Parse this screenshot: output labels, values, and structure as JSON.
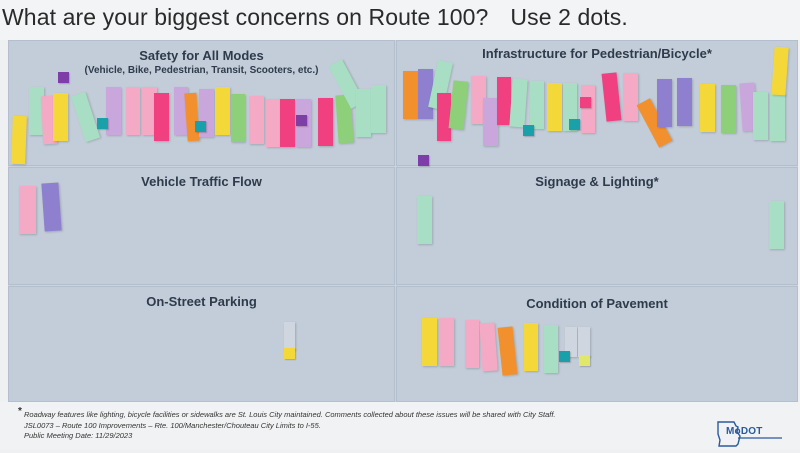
{
  "header": {
    "title": "What are your biggest concerns on Route 100?",
    "instruction": "Use 2 dots."
  },
  "panels": {
    "safety": {
      "title": "Safety for All Modes",
      "subtitle": "(Vehicle, Bike, Pedestrian, Transit, Scooters, etc.)"
    },
    "infrastructure": {
      "title": "Infrastructure for Pedestrian/Bicycle*"
    },
    "traffic": {
      "title": "Vehicle Traffic Flow"
    },
    "signage": {
      "title": "Signage & Lighting*"
    },
    "parking": {
      "title": "On-Street Parking"
    },
    "pavement": {
      "title": "Condition of Pavement"
    }
  },
  "footer": {
    "asterisk": "*",
    "note": "Roadway features like lighting, bicycle facilities or sidewalks are St. Louis City maintained. Comments collected about these issues will be shared with City Staff.",
    "project": "JSL0073 – Route 100 Improvements – Rte. 100/Manchester/Chouteau City Limits to I-55.",
    "meeting": "Public Meeting Date: 11/29/2023"
  },
  "logo": {
    "text": "MoDOT"
  },
  "colors": {
    "yellow": "#f4d83a",
    "pink": "#f4a9c4",
    "magenta": "#f0407f",
    "mint": "#a8dfc4",
    "green": "#8ed07a",
    "orange": "#f3902e",
    "lavender": "#c9a6dc",
    "purple": "#8e7fcf",
    "teal": "#1aa0a8",
    "dot_purple": "#7d3ea8",
    "lime": "#dfe86a"
  }
}
